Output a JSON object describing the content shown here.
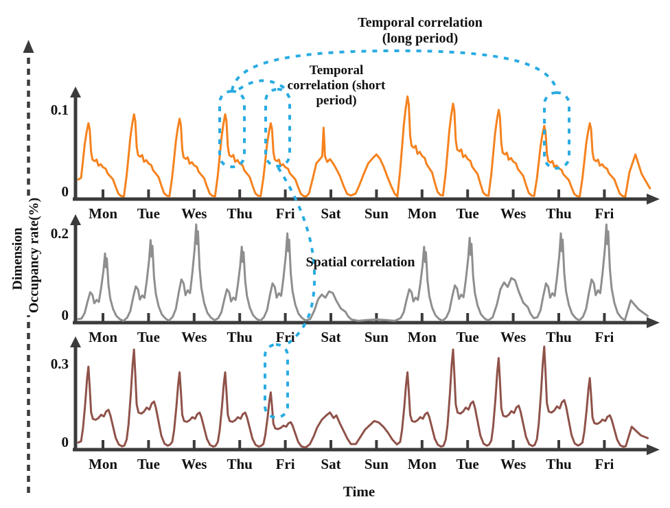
{
  "annotations": {
    "temporal_long": {
      "line1": "Temporal correlation",
      "line2": "(long period)"
    },
    "temporal_short": {
      "line1": "Temporal",
      "line2": "correlation (short",
      "line3": "period)"
    },
    "spatial": "Spatial correlation"
  },
  "axes": {
    "dimension_label": "Dimension",
    "y_label": "Occupancy rate(%)",
    "x_label": "Time"
  },
  "colors": {
    "top_series": "#f5821e",
    "middle_series": "#8e8e8e",
    "bottom_series": "#8f5249",
    "annotation": "#29abe2",
    "axis": "#3b3b3b",
    "text": "#111111"
  },
  "chart_data": [
    {
      "type": "line",
      "name": "top",
      "color_key": "top_series",
      "ylim": [
        0,
        0.12
      ],
      "yticks": {
        "values": [
          0,
          0.1
        ],
        "labels": [
          "0",
          "0.1"
        ]
      },
      "categories": [
        "Mon",
        "Tue",
        "Wes",
        "Thu",
        "Fri",
        "Sat",
        "Sun",
        "Mon",
        "Tue",
        "Wes",
        "Thu",
        "Fri"
      ],
      "day_peaks": [
        0.085,
        0.095,
        0.09,
        0.095,
        0.085,
        0.08,
        0.05,
        0.115,
        0.107,
        0.1,
        0.082,
        0.085
      ],
      "day_shapes": [
        "wd",
        "wd",
        "wd",
        "wd",
        "wd",
        "sat",
        "sun",
        "wd",
        "wd",
        "wd",
        "wd",
        "wd"
      ],
      "shapes": {
        "wd": [
          [
            0.02,
            0.28
          ],
          [
            0.06,
            0.5
          ],
          [
            0.1,
            0.72
          ],
          [
            0.14,
            0.88
          ],
          [
            0.18,
            1.0
          ],
          [
            0.21,
            0.92
          ],
          [
            0.24,
            0.62
          ],
          [
            0.27,
            0.52
          ],
          [
            0.32,
            0.5
          ],
          [
            0.36,
            0.52
          ],
          [
            0.4,
            0.44
          ],
          [
            0.45,
            0.46
          ],
          [
            0.5,
            0.42
          ],
          [
            0.56,
            0.4
          ],
          [
            0.6,
            0.34
          ],
          [
            0.66,
            0.3
          ],
          [
            0.72,
            0.26
          ],
          [
            0.78,
            0.16
          ],
          [
            0.84,
            0.07
          ],
          [
            0.9,
            0.04
          ],
          [
            0.96,
            0.035
          ]
        ],
        "sat": [
          [
            0.02,
            0.08
          ],
          [
            0.1,
            0.28
          ],
          [
            0.18,
            0.5
          ],
          [
            0.26,
            0.56
          ],
          [
            0.31,
            0.6
          ],
          [
            0.34,
            1.0
          ],
          [
            0.37,
            0.6
          ],
          [
            0.42,
            0.52
          ],
          [
            0.48,
            0.56
          ],
          [
            0.55,
            0.5
          ],
          [
            0.62,
            0.42
          ],
          [
            0.7,
            0.32
          ],
          [
            0.78,
            0.18
          ],
          [
            0.86,
            0.07
          ],
          [
            0.94,
            0.05
          ]
        ],
        "sun": [
          [
            0.04,
            0.12
          ],
          [
            0.12,
            0.3
          ],
          [
            0.22,
            0.56
          ],
          [
            0.32,
            0.8
          ],
          [
            0.42,
            0.92
          ],
          [
            0.5,
            1.0
          ],
          [
            0.58,
            0.9
          ],
          [
            0.66,
            0.72
          ],
          [
            0.74,
            0.5
          ],
          [
            0.82,
            0.3
          ],
          [
            0.9,
            0.12
          ],
          [
            0.96,
            0.06
          ]
        ]
      },
      "pre": [
        [
          -0.04,
          0.022
        ]
      ],
      "tail": [
        [
          12.05,
          0.03
        ],
        [
          12.18,
          0.05
        ],
        [
          12.32,
          0.028
        ],
        [
          12.5,
          0.012
        ]
      ]
    },
    {
      "type": "line",
      "name": "middle",
      "color_key": "middle_series",
      "ylim": [
        0,
        0.24
      ],
      "yticks": {
        "values": [
          0,
          0.2
        ],
        "labels": [
          "0",
          "0.2"
        ]
      },
      "categories": [
        "Mon",
        "Tue",
        "Wes",
        "Thu",
        "Fri",
        "Sat",
        "Sun",
        "Mon",
        "Tue",
        "Wes",
        "Thu",
        "Fri"
      ],
      "day_peaks": [
        0.155,
        0.185,
        0.22,
        0.17,
        0.2,
        0.07,
        0.02,
        0.17,
        0.19,
        0.1,
        0.2,
        0.22
      ],
      "day_shapes": [
        "wd",
        "wd",
        "wd",
        "wd",
        "wd",
        "sat",
        "sun",
        "wd",
        "wd",
        "sat",
        "wd",
        "wd"
      ],
      "shapes": {
        "wd": [
          [
            0.03,
            0.06
          ],
          [
            0.1,
            0.14
          ],
          [
            0.16,
            0.3
          ],
          [
            0.22,
            0.44
          ],
          [
            0.27,
            0.4
          ],
          [
            0.31,
            0.28
          ],
          [
            0.36,
            0.33
          ],
          [
            0.41,
            0.3
          ],
          [
            0.46,
            0.5
          ],
          [
            0.51,
            0.75
          ],
          [
            0.545,
            1.0
          ],
          [
            0.565,
            0.8
          ],
          [
            0.585,
            0.93
          ],
          [
            0.62,
            0.55
          ],
          [
            0.66,
            0.35
          ],
          [
            0.72,
            0.2
          ],
          [
            0.79,
            0.1
          ],
          [
            0.87,
            0.05
          ],
          [
            0.95,
            0.025
          ]
        ],
        "sat": [
          [
            0.05,
            0.12
          ],
          [
            0.14,
            0.4
          ],
          [
            0.22,
            0.75
          ],
          [
            0.3,
            0.9
          ],
          [
            0.38,
            0.8
          ],
          [
            0.46,
            1.0
          ],
          [
            0.54,
            0.95
          ],
          [
            0.62,
            0.7
          ],
          [
            0.72,
            0.45
          ],
          [
            0.82,
            0.35
          ],
          [
            0.88,
            0.2
          ],
          [
            0.95,
            0.1
          ]
        ],
        "sun": [
          [
            0.1,
            0.2
          ],
          [
            0.3,
            0.3
          ],
          [
            0.5,
            0.35
          ],
          [
            0.7,
            0.3
          ],
          [
            0.9,
            0.2
          ]
        ]
      },
      "pre": [
        [
          -0.04,
          0.008
        ]
      ],
      "tail": [
        [
          12.08,
          0.05
        ],
        [
          12.25,
          0.03
        ],
        [
          12.45,
          0.015
        ]
      ]
    },
    {
      "type": "line",
      "name": "bottom",
      "color_key": "bottom_series",
      "ylim": [
        0,
        0.38
      ],
      "yticks": {
        "values": [
          0,
          0.3
        ],
        "labels": [
          "0",
          "0.3"
        ]
      },
      "categories": [
        "Mon",
        "Tue",
        "Wes",
        "Thu",
        "Fri",
        "Sat",
        "Sun",
        "Mon",
        "Tue",
        "Wes",
        "Thu",
        "Fri"
      ],
      "day_peaks": [
        0.29,
        0.35,
        0.27,
        0.27,
        0.2,
        0.13,
        0.1,
        0.27,
        0.35,
        0.32,
        0.36,
        0.25
      ],
      "day_shapes": [
        "wd",
        "wd",
        "wd",
        "wd",
        "wd",
        "sat",
        "sun",
        "wd",
        "wd",
        "wd",
        "wd",
        "wd"
      ],
      "shapes": {
        "wd": [
          [
            0.02,
            0.1
          ],
          [
            0.06,
            0.25
          ],
          [
            0.11,
            0.55
          ],
          [
            0.15,
            0.85
          ],
          [
            0.18,
            1.0
          ],
          [
            0.21,
            0.75
          ],
          [
            0.24,
            0.45
          ],
          [
            0.28,
            0.37
          ],
          [
            0.34,
            0.36
          ],
          [
            0.4,
            0.38
          ],
          [
            0.46,
            0.42
          ],
          [
            0.52,
            0.4
          ],
          [
            0.57,
            0.46
          ],
          [
            0.62,
            0.48
          ],
          [
            0.66,
            0.42
          ],
          [
            0.72,
            0.28
          ],
          [
            0.78,
            0.14
          ],
          [
            0.85,
            0.06
          ],
          [
            0.92,
            0.04
          ],
          [
            0.97,
            0.05
          ]
        ],
        "sat": [
          [
            0.04,
            0.15
          ],
          [
            0.12,
            0.35
          ],
          [
            0.2,
            0.6
          ],
          [
            0.3,
            0.8
          ],
          [
            0.4,
            0.92
          ],
          [
            0.48,
            1.0
          ],
          [
            0.56,
            0.85
          ],
          [
            0.62,
            0.92
          ],
          [
            0.7,
            0.7
          ],
          [
            0.78,
            0.5
          ],
          [
            0.86,
            0.3
          ],
          [
            0.94,
            0.15
          ]
        ],
        "sun": [
          [
            0.05,
            0.2
          ],
          [
            0.15,
            0.45
          ],
          [
            0.25,
            0.7
          ],
          [
            0.35,
            0.85
          ],
          [
            0.45,
            1.0
          ],
          [
            0.55,
            0.95
          ],
          [
            0.65,
            0.8
          ],
          [
            0.75,
            0.6
          ],
          [
            0.85,
            0.35
          ],
          [
            0.95,
            0.18
          ]
        ]
      },
      "pre": [
        [
          -0.04,
          0.025
        ]
      ],
      "tail": [
        [
          12.1,
          0.08
        ],
        [
          12.3,
          0.05
        ],
        [
          12.45,
          0.04
        ]
      ]
    }
  ]
}
